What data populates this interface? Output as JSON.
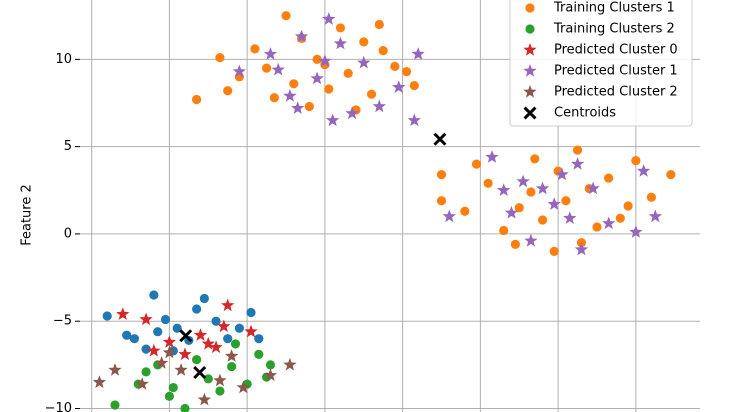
{
  "chart_data": {
    "type": "scatter",
    "ylabel": "Feature 2",
    "xlim": [
      -8.3,
      7.65
    ],
    "ylim": [
      -10.2,
      13.4
    ],
    "xticks": [
      -8,
      -6,
      -4,
      -2,
      0,
      2,
      4,
      6
    ],
    "yticks": [
      {
        "value": -10,
        "label": "−10"
      },
      {
        "value": -5,
        "label": "−5"
      },
      0,
      5,
      10
    ],
    "grid": true,
    "legend": "upper right",
    "series": [
      {
        "color": "#1f77b4",
        "marker": "circle",
        "x": [
          -7.6,
          -6.9,
          -6.4,
          -6.1,
          -5.8,
          -5.5,
          -5.3,
          -5.1,
          -4.8,
          -4.5,
          -4.2,
          -3.9,
          -3.7,
          -6.6,
          -7.1,
          -5.9,
          -6.3
        ],
        "y": [
          -4.7,
          -6.0,
          -3.5,
          -4.9,
          -5.4,
          -6.1,
          -4.3,
          -3.7,
          -5.0,
          -6.0,
          -5.4,
          -4.5,
          -6.0,
          -6.6,
          -5.8,
          -6.7,
          -5.6
        ]
      },
      {
        "name": "Training Clusters 1",
        "color": "#ff7f0e",
        "marker": "circle",
        "x": [
          -3.0,
          -2.6,
          -1.6,
          -1.0,
          -0.5,
          -2.2,
          -3.5,
          -4.2,
          -1.4,
          -0.2,
          -2.8,
          -1.9,
          -0.8,
          -3.3,
          -2.4,
          -1.2,
          0.1,
          -4.5,
          -0.6,
          -2.0,
          -5.3,
          -4.7,
          0.3,
          -3.8,
          1.0,
          1.0,
          1.6,
          2.2,
          2.6,
          3.0,
          3.3,
          3.6,
          4.0,
          4.2,
          4.5,
          4.8,
          5.0,
          5.3,
          5.8,
          6.0,
          6.4,
          6.9,
          3.9,
          2.9,
          4.6,
          5.6,
          1.9,
          3.4
        ],
        "y": [
          12.5,
          11.2,
          11.8,
          11.0,
          10.5,
          10.0,
          9.5,
          9.0,
          9.2,
          9.6,
          8.6,
          8.3,
          8.0,
          7.8,
          7.3,
          7.1,
          9.3,
          8.2,
          12.0,
          9.7,
          7.7,
          10.1,
          8.5,
          10.6,
          3.4,
          1.9,
          1.3,
          2.9,
          0.2,
          1.5,
          2.4,
          0.8,
          3.6,
          1.9,
          4.8,
          2.6,
          0.4,
          3.2,
          1.6,
          4.2,
          2.1,
          3.4,
          -1.0,
          -0.6,
          -0.5,
          0.9,
          4.0,
          4.3
        ]
      },
      {
        "name": "Training Clusters 2",
        "color": "#2ca02c",
        "marker": "circle",
        "x": [
          -7.4,
          -6.8,
          -6.3,
          -5.9,
          -5.6,
          -5.3,
          -5.0,
          -4.7,
          -4.4,
          -4.0,
          -3.7,
          -3.4,
          -4.3,
          -6.0,
          -3.5,
          -6.6
        ],
        "y": [
          -9.8,
          -8.6,
          -7.5,
          -8.8,
          -10.0,
          -7.2,
          -8.3,
          -9.0,
          -7.6,
          -8.6,
          -6.9,
          -7.5,
          -6.3,
          -9.3,
          -8.2,
          -7.9
        ]
      },
      {
        "name": "Predicted Cluster 0",
        "color": "#d62728",
        "marker": "star",
        "x": [
          -7.2,
          -6.6,
          -6.0,
          -5.6,
          -5.2,
          -4.8,
          -4.6,
          -4.5,
          -3.9,
          -6.4,
          -5.0
        ],
        "y": [
          -4.6,
          -4.9,
          -6.2,
          -6.9,
          -5.8,
          -6.5,
          -5.3,
          -4.1,
          -5.6,
          -6.7,
          -6.3
        ]
      },
      {
        "name": "Predicted Cluster 1",
        "color": "#9467bd",
        "marker": "star",
        "x": [
          -4.2,
          -3.4,
          -2.6,
          -1.9,
          -1.6,
          -1.0,
          -2.2,
          -2.9,
          -2.7,
          -1.8,
          -1.3,
          -0.6,
          -0.1,
          0.4,
          0.3,
          -3.2,
          -2.0,
          1.2,
          2.3,
          2.6,
          2.8,
          3.3,
          3.6,
          3.9,
          4.1,
          4.3,
          4.6,
          4.9,
          5.3,
          6.2,
          6.0,
          6.5,
          3.1,
          4.5
        ],
        "y": [
          9.3,
          10.3,
          11.3,
          12.3,
          10.9,
          9.8,
          8.9,
          7.9,
          7.2,
          6.5,
          6.9,
          7.3,
          8.4,
          10.3,
          6.5,
          9.4,
          9.9,
          1.0,
          4.4,
          2.5,
          1.2,
          -0.4,
          2.6,
          1.7,
          3.4,
          0.9,
          -0.9,
          2.6,
          0.6,
          3.6,
          0.1,
          1.0,
          3.0,
          4.0
        ]
      },
      {
        "name": "Predicted Cluster 2",
        "color": "#8c564b",
        "marker": "star",
        "x": [
          -7.8,
          -7.4,
          -6.7,
          -6.2,
          -5.7,
          -5.1,
          -4.7,
          -4.1,
          -3.4,
          -2.9,
          -6.0,
          -4.4
        ],
        "y": [
          -8.5,
          -7.8,
          -8.6,
          -7.4,
          -7.8,
          -9.5,
          -8.4,
          -8.8,
          -8.1,
          -7.5,
          -6.8,
          -7.0
        ]
      },
      {
        "name": "Centroids",
        "color": "#000000",
        "marker": "x",
        "x": [
          0.96,
          -5.58,
          -5.22
        ],
        "y": [
          5.43,
          -5.83,
          -7.94
        ]
      }
    ]
  }
}
